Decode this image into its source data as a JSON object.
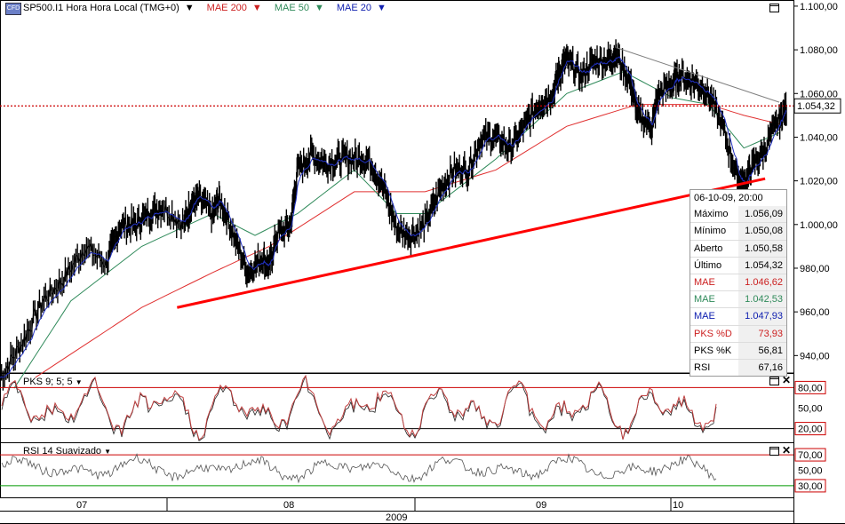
{
  "header": {
    "symbol": "SP500.I1 Hora Hora Local (TMG+0)",
    "ind1": "MAE 200",
    "ind2": "MAE 50",
    "ind3": "MAE 20",
    "logo": "CFD"
  },
  "colors": {
    "mae200": "#e03030",
    "mae50": "#2f8a5a",
    "mae20": "#2030c0",
    "trend": "#ff0000",
    "price": "#000000",
    "resist": "#808080",
    "pks": "#c04040",
    "rsi": "#555555",
    "hl_red": "#cc0000",
    "hl_green": "#009900"
  },
  "info_box": {
    "datetime": "06-10-09, 20:00",
    "rows": [
      {
        "label": "Máximo",
        "value": "1.056,09",
        "color": "#000000"
      },
      {
        "label": "Mínimo",
        "value": "1.050,08",
        "color": "#000000"
      },
      {
        "label": "Aberto",
        "value": "1.050,58",
        "color": "#000000"
      },
      {
        "label": "Último",
        "value": "1.054,32",
        "color": "#000000"
      },
      {
        "label": "MAE",
        "value": "1.046,62",
        "color": "#cc2020"
      },
      {
        "label": "MAE",
        "value": "1.042,53",
        "color": "#2f8a5a"
      },
      {
        "label": "MAE",
        "value": "1.047,93",
        "color": "#1020b0"
      },
      {
        "label": "PKS %D",
        "value": "73,93",
        "color": "#cc2020"
      },
      {
        "label": "PKS %K",
        "value": "56,81",
        "color": "#000000"
      },
      {
        "label": "RSI",
        "value": "67,16",
        "color": "#000000"
      }
    ]
  },
  "last_price_label": "1.054,32",
  "pks_panel": {
    "label": "PKS 9; 5; 5",
    "hi": "80,00",
    "mid": "50,00",
    "lo": "20,00"
  },
  "rsi_panel": {
    "label": "RSI 14 Suavizado",
    "hi": "70,00",
    "mid": "50,00",
    "lo": "30,00"
  },
  "chart_data": {
    "type": "line",
    "price_axis_ticks": [
      "1.100,00",
      "1.080,00",
      "1.060,00",
      "1.040,00",
      "1.020,00",
      "1.000,00",
      "980,00",
      "960,00",
      "940,00"
    ],
    "price_axis_values": [
      1100,
      1080,
      1060,
      1040,
      1020,
      1000,
      980,
      960,
      940
    ],
    "ylim": [
      932,
      1102
    ],
    "x_month_labels": [
      "07",
      "08",
      "09",
      "10"
    ],
    "x_year_label": "2009",
    "price_path": [
      [
        0,
        930
      ],
      [
        0.03,
        945
      ],
      [
        0.06,
        965
      ],
      [
        0.09,
        975
      ],
      [
        0.12,
        990
      ],
      [
        0.15,
        982
      ],
      [
        0.17,
        1000
      ],
      [
        0.19,
        1000
      ],
      [
        0.21,
        1005
      ],
      [
        0.23,
        1008
      ],
      [
        0.26,
        1000
      ],
      [
        0.27,
        1010
      ],
      [
        0.28,
        1012
      ],
      [
        0.3,
        1005
      ],
      [
        0.31,
        1012
      ],
      [
        0.33,
        995
      ],
      [
        0.35,
        978
      ],
      [
        0.37,
        985
      ],
      [
        0.38,
        980
      ],
      [
        0.39,
        995
      ],
      [
        0.41,
        1000
      ],
      [
        0.42,
        1025
      ],
      [
        0.44,
        1032
      ],
      [
        0.46,
        1028
      ],
      [
        0.48,
        1030
      ],
      [
        0.5,
        1030
      ],
      [
        0.52,
        1030
      ],
      [
        0.54,
        1018
      ],
      [
        0.56,
        998
      ],
      [
        0.58,
        995
      ],
      [
        0.6,
        1000
      ],
      [
        0.62,
        1015
      ],
      [
        0.64,
        1025
      ],
      [
        0.66,
        1025
      ],
      [
        0.68,
        1040
      ],
      [
        0.7,
        1040
      ],
      [
        0.72,
        1035
      ],
      [
        0.74,
        1045
      ],
      [
        0.76,
        1055
      ],
      [
        0.78,
        1060
      ],
      [
        0.79,
        1070
      ],
      [
        0.8,
        1075
      ],
      [
        0.82,
        1068
      ],
      [
        0.84,
        1075
      ],
      [
        0.86,
        1075
      ],
      [
        0.87,
        1078
      ],
      [
        0.89,
        1065
      ],
      [
        0.9,
        1050
      ],
      [
        0.92,
        1045
      ],
      [
        0.93,
        1060
      ],
      [
        0.95,
        1065
      ],
      [
        0.96,
        1068
      ],
      [
        0.98,
        1065
      ],
      [
        1.0,
        1060
      ],
      [
        1.02,
        1045
      ],
      [
        1.04,
        1022
      ],
      [
        1.05,
        1018
      ],
      [
        1.06,
        1025
      ],
      [
        1.08,
        1035
      ],
      [
        1.1,
        1048
      ],
      [
        1.11,
        1054
      ]
    ],
    "trendline": [
      [
        0.25,
        962
      ],
      [
        1.08,
        1021
      ]
    ],
    "resistance_line": [
      [
        0.87,
        1081
      ],
      [
        1.1,
        1056
      ]
    ],
    "mae200_path": [
      [
        0.05,
        930
      ],
      [
        0.2,
        962
      ],
      [
        0.3,
        978
      ],
      [
        0.38,
        990
      ],
      [
        0.5,
        1015
      ],
      [
        0.6,
        1015
      ],
      [
        0.7,
        1025
      ],
      [
        0.8,
        1045
      ],
      [
        0.9,
        1055
      ],
      [
        1.0,
        1055
      ],
      [
        1.05,
        1050
      ],
      [
        1.1,
        1046
      ]
    ],
    "mae50_path": [
      [
        0.02,
        925
      ],
      [
        0.1,
        965
      ],
      [
        0.2,
        990
      ],
      [
        0.3,
        1005
      ],
      [
        0.36,
        995
      ],
      [
        0.42,
        1005
      ],
      [
        0.5,
        1025
      ],
      [
        0.56,
        1005
      ],
      [
        0.6,
        1005
      ],
      [
        0.7,
        1030
      ],
      [
        0.8,
        1060
      ],
      [
        0.88,
        1070
      ],
      [
        0.95,
        1058
      ],
      [
        1.0,
        1055
      ],
      [
        1.05,
        1035
      ],
      [
        1.1,
        1042
      ]
    ],
    "last_price": 1054.32
  }
}
